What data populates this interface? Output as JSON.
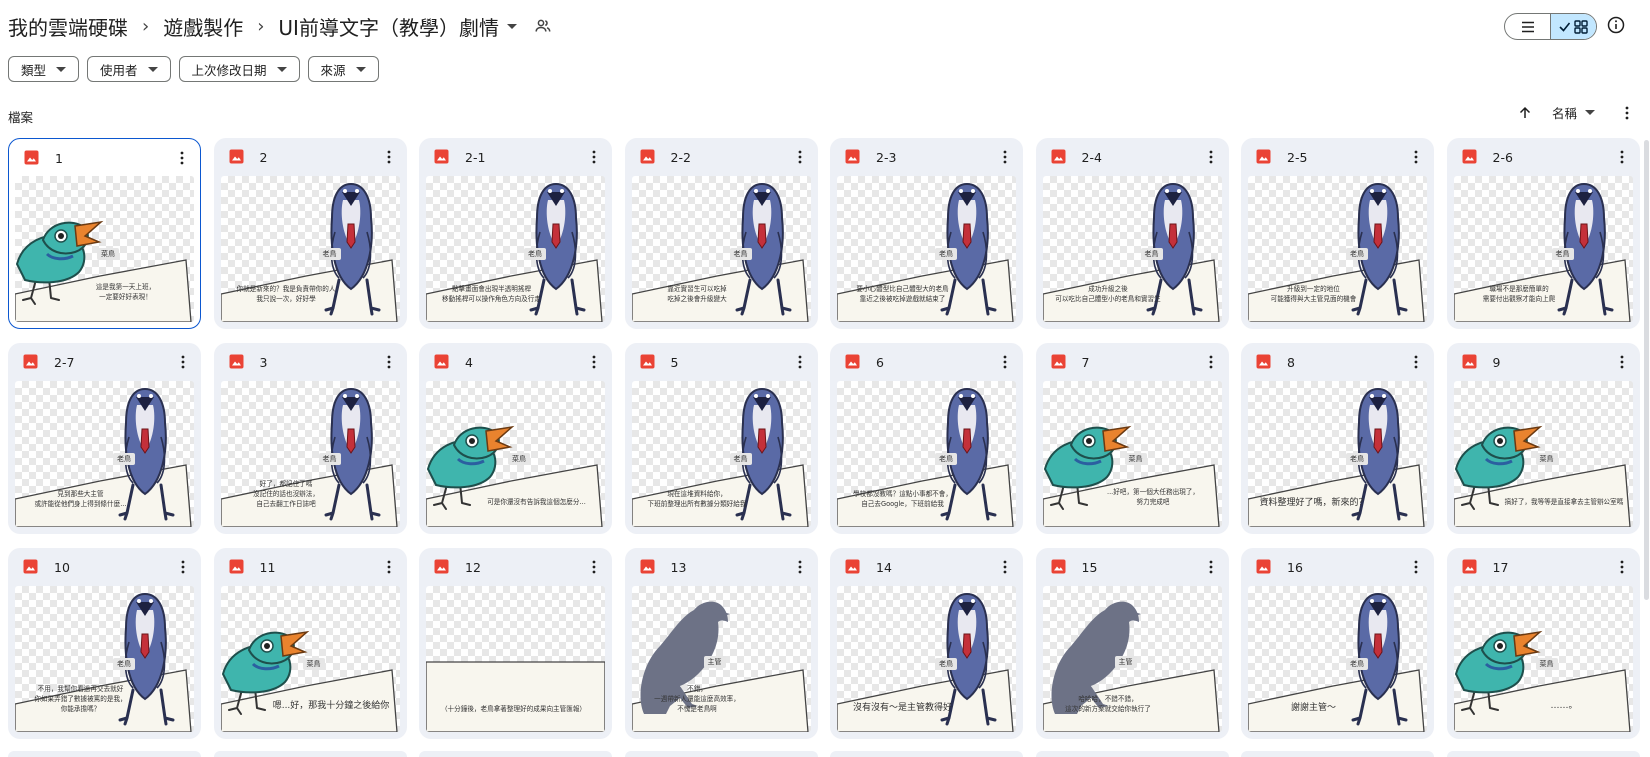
{
  "breadcrumb": {
    "root": "我的雲端硬碟",
    "folder": "遊戲製作",
    "current": "UI前導文字（教學）劇情"
  },
  "filters": [
    "類型",
    "使用者",
    "上次修改日期",
    "來源"
  ],
  "section_label": "檔案",
  "sort": {
    "label": "名稱"
  },
  "files": [
    {
      "name": "1",
      "type": "bird",
      "text": "這是我第一天上班，\n一定要好好表現！",
      "speaker": "菜鳥",
      "selected": true
    },
    {
      "name": "2",
      "type": "boss",
      "text": "你就是新來的？我是負責帶你的人\n我只說一次，好好學",
      "speaker": "老鳥"
    },
    {
      "name": "2-1",
      "type": "boss",
      "text": "點擊畫面會出現半透明搖桿\n移動搖桿可以操作角色方向及行走",
      "speaker": "老鳥"
    },
    {
      "name": "2-2",
      "type": "boss",
      "text": "靠近實習生可以吃掉\n吃掉之後會升級變大",
      "speaker": "老鳥"
    },
    {
      "name": "2-3",
      "type": "boss",
      "text": "要小心體型比自己體型大的老鳥\n靠近之後被吃掉遊戲就結束了",
      "speaker": "老鳥"
    },
    {
      "name": "2-4",
      "type": "boss",
      "text": "成功升級之後\n可以吃比自己體型小的老鳥和實習生",
      "speaker": "老鳥"
    },
    {
      "name": "2-5",
      "type": "boss",
      "text": "升級到一定的地位\n可能獲得與大主管見面的機會",
      "speaker": "老鳥"
    },
    {
      "name": "2-6",
      "type": "boss",
      "text": "職場不是那麼簡單的\n需要付出觀察才能向上爬",
      "speaker": "老鳥"
    },
    {
      "name": "2-7",
      "type": "boss",
      "text": "見到那些大主管\n或許能從他們身上得到條什麼...",
      "speaker": "老鳥"
    },
    {
      "name": "3",
      "type": "boss",
      "text": "好了，都記住了嗎\n沒記住的話也沒辦法，\n自己去翻工作日誌吧",
      "speaker": "老鳥"
    },
    {
      "name": "4",
      "type": "bird",
      "text": "可是你還沒有告訴我這個怎麼分...",
      "speaker": "菜鳥"
    },
    {
      "name": "5",
      "type": "boss",
      "text": "現在這堆資料給你，\n下班前整理出所有數據分類好給我",
      "speaker": "老鳥"
    },
    {
      "name": "6",
      "type": "boss",
      "text": "學校都沒教嗎？這點小事都不會，\n自己去Google，下班前給我",
      "speaker": "老鳥"
    },
    {
      "name": "7",
      "type": "bird",
      "text": "...好吧，第一個大任務出現了，\n努力完成吧",
      "speaker": "菜鳥"
    },
    {
      "name": "8",
      "type": "boss",
      "text": "資料整理好了嗎，新來的？",
      "speaker": "老鳥",
      "big": true
    },
    {
      "name": "9",
      "type": "bird",
      "text": "搞好了，我等等是直接拿去主管辦公室嗎",
      "speaker": "菜鳥"
    },
    {
      "name": "10",
      "type": "boss",
      "text": "不用，我幫你看過再交去就好\n你如果弄錯了數據被罵的是我，\n你能承擔嗎？",
      "speaker": "老鳥"
    },
    {
      "name": "11",
      "type": "bird",
      "text": "嗯...好，那我十分鐘之後給你",
      "speaker": "菜鳥",
      "big": true
    },
    {
      "name": "12",
      "type": "narration",
      "text": "（十分鐘後，老鳥拿著整理好的成果向主管匯報）",
      "speaker": ""
    },
    {
      "name": "13",
      "type": "shadow",
      "text": "不錯，\n一週帶新人還能這麼高效率，\n不愧是老鳥啊",
      "speaker": "主管"
    },
    {
      "name": "14",
      "type": "boss",
      "text": "沒有沒有～是主管教得好",
      "speaker": "老鳥",
      "big": true
    },
    {
      "name": "15",
      "type": "shadow",
      "text": "哈哈哈，不錯不錯，\n這次的新方案就交給你執行了",
      "speaker": "主管"
    },
    {
      "name": "16",
      "type": "boss",
      "text": "謝謝主管～",
      "speaker": "老鳥",
      "big": true
    },
    {
      "name": "17",
      "type": "bird",
      "text": "……。",
      "speaker": "菜鳥",
      "big": true
    }
  ],
  "icons": {
    "file": "image-file-icon",
    "more": "more-vert-icon",
    "share": "shared-people-icon",
    "info": "info-icon",
    "list": "list-view-icon",
    "grid": "grid-view-icon",
    "sort": "arrow-up-icon"
  },
  "colors": {
    "file_icon": "#ea4335",
    "selected_border": "#0b57d0",
    "active_toggle": "#c2e7ff",
    "bird_body": "#3fb5ad",
    "bird_beak": "#e9832e",
    "boss_body": "#5a6aa6",
    "boss_tie": "#c4303a"
  }
}
